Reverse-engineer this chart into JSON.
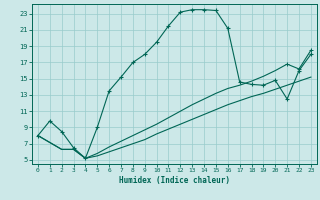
{
  "xlabel": "Humidex (Indice chaleur)",
  "bg_color": "#cce8e8",
  "grid_color": "#99cccc",
  "line_color": "#006655",
  "xlim": [
    -0.5,
    23.5
  ],
  "ylim": [
    4.5,
    24.2
  ],
  "xticks": [
    0,
    1,
    2,
    3,
    4,
    5,
    6,
    7,
    8,
    9,
    10,
    11,
    12,
    13,
    14,
    15,
    16,
    17,
    18,
    19,
    20,
    21,
    22,
    23
  ],
  "yticks": [
    5,
    7,
    9,
    11,
    13,
    15,
    17,
    19,
    21,
    23
  ],
  "curve1_x": [
    0,
    1,
    2,
    3,
    4,
    5,
    6,
    7,
    8,
    9,
    10,
    11,
    12,
    13,
    14,
    15,
    16,
    17,
    18,
    19,
    20,
    21,
    22,
    23
  ],
  "curve1_y": [
    8.0,
    9.8,
    8.5,
    6.5,
    5.2,
    9.0,
    13.5,
    15.2,
    17.0,
    18.0,
    19.5,
    21.5,
    23.2,
    23.5,
    23.5,
    23.4,
    21.2,
    14.6,
    14.3,
    14.2,
    14.8,
    12.5,
    16.0,
    18.0
  ],
  "curve2_x": [
    0,
    2,
    3,
    4,
    5,
    6,
    7,
    8,
    9,
    10,
    11,
    12,
    13,
    14,
    15,
    16,
    17,
    18,
    19,
    20,
    21,
    22,
    23
  ],
  "curve2_y": [
    8.0,
    6.3,
    6.3,
    5.2,
    5.5,
    6.0,
    6.5,
    7.0,
    7.5,
    8.2,
    8.8,
    9.4,
    10.0,
    10.6,
    11.2,
    11.8,
    12.3,
    12.8,
    13.2,
    13.7,
    14.2,
    14.7,
    15.2
  ],
  "curve3_x": [
    0,
    2,
    3,
    4,
    5,
    6,
    7,
    8,
    9,
    10,
    11,
    12,
    13,
    14,
    15,
    16,
    17,
    18,
    19,
    20,
    21,
    22,
    23
  ],
  "curve3_y": [
    8.0,
    6.3,
    6.3,
    5.2,
    5.8,
    6.6,
    7.3,
    8.0,
    8.7,
    9.4,
    10.2,
    11.0,
    11.8,
    12.5,
    13.2,
    13.8,
    14.2,
    14.7,
    15.3,
    16.0,
    16.8,
    16.2,
    18.5
  ],
  "figsize": [
    3.2,
    2.0
  ],
  "dpi": 100
}
